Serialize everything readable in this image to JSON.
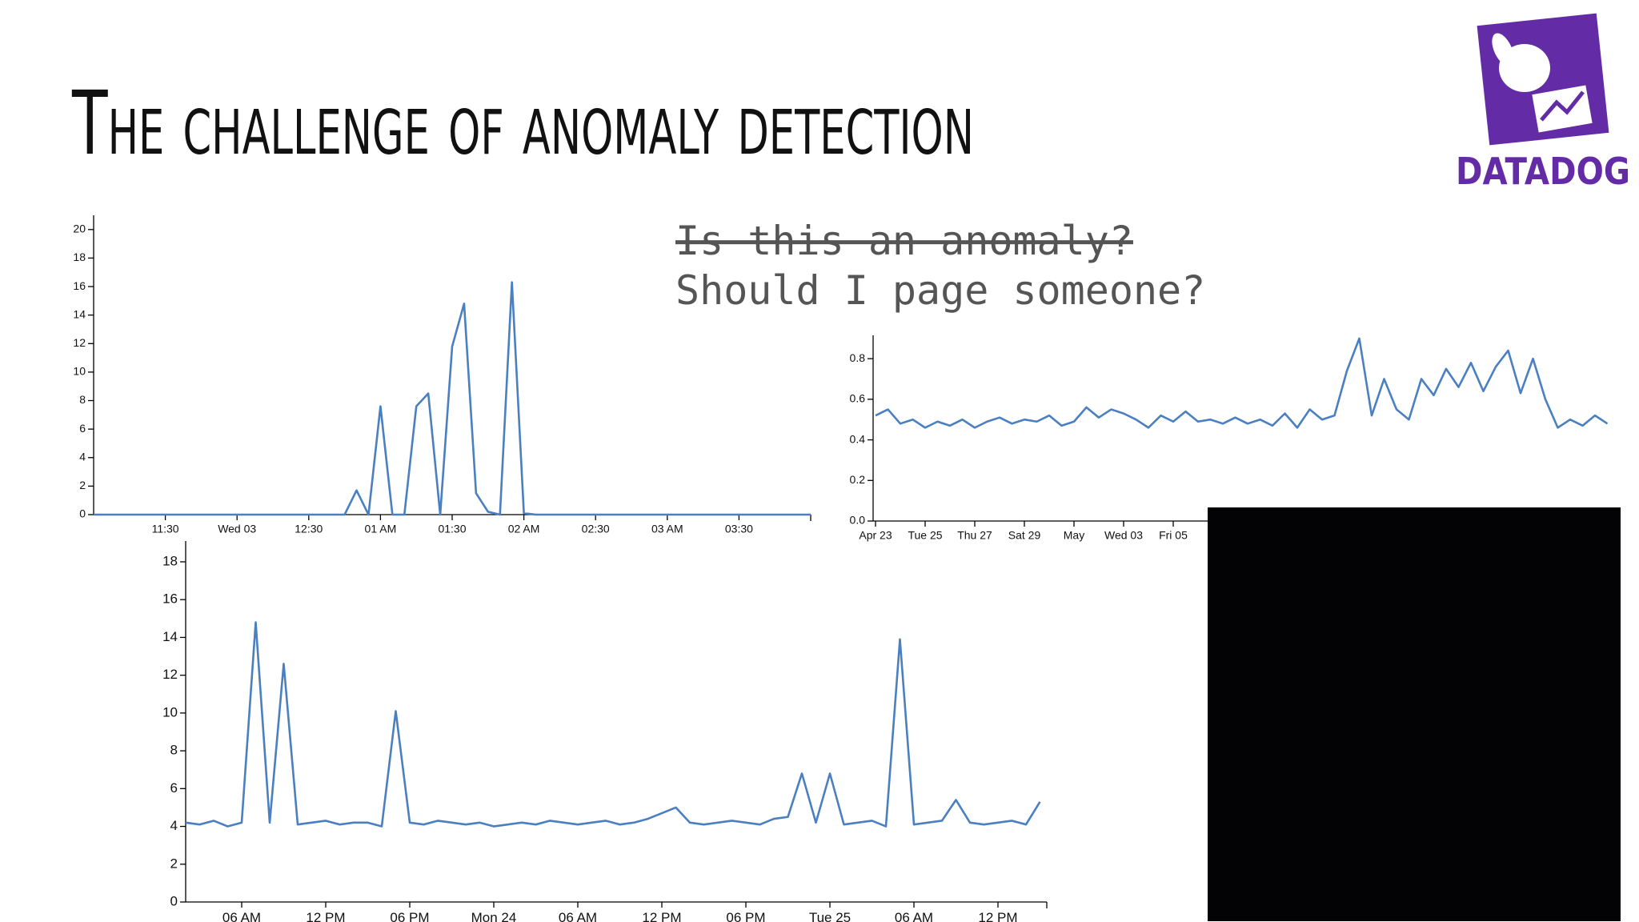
{
  "title": "The challenge of anomaly detection",
  "callout": {
    "struck": "Is this an anomaly?",
    "question": "Should I page someone?"
  },
  "logo": {
    "text": "DATADOG"
  },
  "chart_data": [
    {
      "type": "line",
      "color": "#4a7fc1",
      "categories": [
        null,
        null,
        null,
        null,
        null,
        null,
        "11:30",
        null,
        null,
        null,
        null,
        null,
        "Wed 03",
        null,
        null,
        null,
        null,
        null,
        "12:30",
        null,
        null,
        null,
        null,
        null,
        "01 AM",
        null,
        null,
        null,
        null,
        null,
        "01:30",
        null,
        null,
        null,
        null,
        null,
        "02 AM",
        null,
        null,
        null,
        null,
        null,
        "02:30",
        null,
        null,
        null,
        null,
        null,
        "03 AM",
        null,
        null,
        null,
        null,
        null,
        "03:30",
        null,
        null,
        null,
        null,
        null,
        null
      ],
      "values": [
        0,
        0,
        0,
        0,
        0,
        0,
        0,
        0,
        0,
        0,
        0,
        0,
        0,
        0,
        0,
        0,
        0,
        0,
        0,
        0,
        0,
        0,
        1.7,
        0,
        7.6,
        0,
        0,
        7.6,
        8.5,
        0,
        11.8,
        14.8,
        1.5,
        0.2,
        0,
        16.3,
        0.1,
        0,
        0,
        0,
        0,
        0,
        0,
        0,
        0,
        0,
        0,
        0,
        0,
        0,
        0,
        0,
        0,
        0,
        0,
        0,
        0,
        0,
        0,
        0,
        0
      ],
      "ylim": [
        0,
        21
      ],
      "yticks": [
        0,
        2,
        4,
        6,
        8,
        10,
        12,
        14,
        16,
        18,
        20
      ]
    },
    {
      "type": "line",
      "color": "#4a7fc1",
      "categories": [
        "Apr 23",
        null,
        null,
        null,
        "Tue 25",
        null,
        null,
        null,
        "Thu 27",
        null,
        null,
        null,
        "Sat 29",
        null,
        null,
        null,
        "May",
        null,
        null,
        null,
        "Wed 03",
        null,
        null,
        null,
        "Fri 05",
        null,
        null,
        null,
        null,
        null,
        null,
        null,
        null,
        null,
        null,
        null,
        null,
        null,
        null,
        null,
        null,
        null,
        null,
        null,
        null,
        null,
        null,
        null,
        null,
        null,
        null,
        null,
        null,
        null,
        null,
        null,
        null,
        null,
        null,
        null
      ],
      "values": [
        0.52,
        0.55,
        0.48,
        0.5,
        0.46,
        0.49,
        0.47,
        0.5,
        0.46,
        0.49,
        0.51,
        0.48,
        0.5,
        0.49,
        0.52,
        0.47,
        0.49,
        0.56,
        0.51,
        0.55,
        0.53,
        0.5,
        0.46,
        0.52,
        0.49,
        0.54,
        0.49,
        0.5,
        0.48,
        0.51,
        0.48,
        0.5,
        0.47,
        0.53,
        0.46,
        0.55,
        0.5,
        0.52,
        0.74,
        0.9,
        0.52,
        0.7,
        0.55,
        0.5,
        0.7,
        0.62,
        0.75,
        0.66,
        0.78,
        0.64,
        0.76,
        0.84,
        0.63,
        0.8,
        0.6,
        0.46,
        0.5,
        0.47,
        0.52,
        0.48
      ],
      "ylim": [
        0,
        0.915
      ],
      "yticks": [
        {
          "value": 0,
          "label": "0.0"
        },
        0.2,
        0.4,
        0.6,
        0.8
      ]
    },
    {
      "type": "line",
      "color": "#4a7fc1",
      "categories": [
        null,
        null,
        null,
        null,
        "06 AM",
        null,
        null,
        null,
        null,
        null,
        "12 PM",
        null,
        null,
        null,
        null,
        null,
        "06 PM",
        null,
        null,
        null,
        null,
        null,
        "Mon 24",
        null,
        null,
        null,
        null,
        null,
        "06 AM",
        null,
        null,
        null,
        null,
        null,
        "12 PM",
        null,
        null,
        null,
        null,
        null,
        "06 PM",
        null,
        null,
        null,
        null,
        null,
        "Tue 25",
        null,
        null,
        null,
        null,
        null,
        "06 AM",
        null,
        null,
        null,
        null,
        null,
        "12 PM",
        null,
        null,
        null
      ],
      "values": [
        4.2,
        4.1,
        4.3,
        4.0,
        4.2,
        14.8,
        4.2,
        12.6,
        4.1,
        4.2,
        4.3,
        4.1,
        4.2,
        4.2,
        4.0,
        10.1,
        4.2,
        4.1,
        4.3,
        4.2,
        4.1,
        4.2,
        4.0,
        4.1,
        4.2,
        4.1,
        4.3,
        4.2,
        4.1,
        4.2,
        4.3,
        4.1,
        4.2,
        4.4,
        4.7,
        5.0,
        4.2,
        4.1,
        4.2,
        4.3,
        4.2,
        4.1,
        4.4,
        4.5,
        6.8,
        4.2,
        6.8,
        4.1,
        4.2,
        4.3,
        4.0,
        13.9,
        4.1,
        4.2,
        4.3,
        5.4,
        4.2,
        4.1,
        4.2,
        4.3,
        4.1,
        5.3
      ],
      "ylim": [
        0,
        19.1
      ],
      "yticks": [
        0,
        2,
        4,
        6,
        8,
        10,
        12,
        14,
        16,
        18
      ]
    }
  ]
}
